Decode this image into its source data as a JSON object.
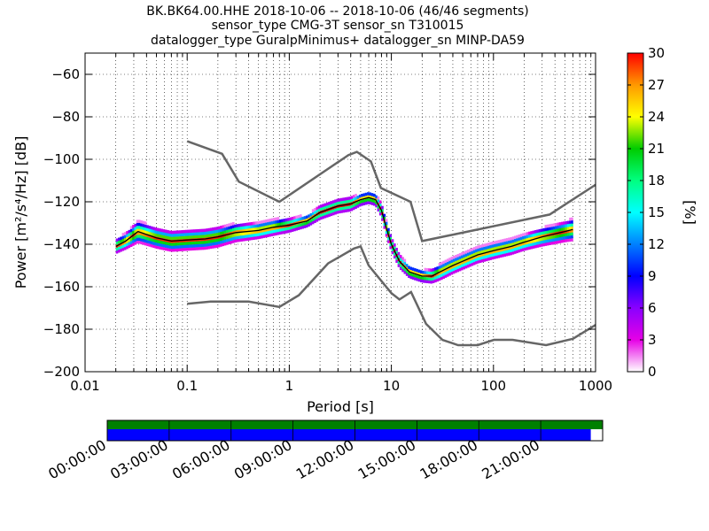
{
  "header": {
    "title_lines": [
      "BK.BK64.00.HHE   2018-10-06 -- 2018-10-06  (46/46 segments)",
      "sensor_type CMG-3T sensor_sn T310015",
      "datalogger_type GuralpMinimus+ datalogger_sn MINP-DA59"
    ]
  },
  "chart_data": {
    "type": "heatmap",
    "xlabel": "Period [s]",
    "ylabel": "Power [m²/s⁴/Hz] [dB]",
    "x_scale": "log",
    "xlim": [
      0.01,
      1000
    ],
    "ylim": [
      -200,
      -50
    ],
    "x_ticks": [
      {
        "value": 0.01,
        "label": "0.01"
      },
      {
        "value": 0.1,
        "label": "0.1"
      },
      {
        "value": 1,
        "label": "1"
      },
      {
        "value": 10,
        "label": "10"
      },
      {
        "value": 100,
        "label": "100"
      },
      {
        "value": 1000,
        "label": "1000"
      }
    ],
    "y_ticks": [
      {
        "value": -60,
        "label": "−60"
      },
      {
        "value": -80,
        "label": "−80"
      },
      {
        "value": -100,
        "label": "−100"
      },
      {
        "value": -120,
        "label": "−120"
      },
      {
        "value": -140,
        "label": "−140"
      },
      {
        "value": -160,
        "label": "−160"
      },
      {
        "value": -180,
        "label": "−180"
      },
      {
        "value": -200,
        "label": "−200"
      }
    ],
    "grid": "dotted vertical",
    "colorbar": {
      "label": "[%]",
      "min": 0,
      "max": 30,
      "ticks": [
        {
          "value": 0,
          "label": "0"
        },
        {
          "value": 3,
          "label": "3"
        },
        {
          "value": 6,
          "label": "6"
        },
        {
          "value": 9,
          "label": "9"
        },
        {
          "value": 12,
          "label": "12"
        },
        {
          "value": 15,
          "label": "15"
        },
        {
          "value": 18,
          "label": "18"
        },
        {
          "value": 21,
          "label": "21"
        },
        {
          "value": 24,
          "label": "24"
        },
        {
          "value": 27,
          "label": "27"
        },
        {
          "value": 30,
          "label": "30"
        }
      ],
      "colors": [
        "#ffffff",
        "#e600e6",
        "#8a00ff",
        "#0000ff",
        "#0080ff",
        "#00ffff",
        "#00ff80",
        "#00cc00",
        "#ffff00",
        "#ff9900",
        "#ff0000"
      ]
    },
    "noise_models": [
      {
        "period": [
          0.1,
          0.17,
          0.4,
          0.8,
          1.24,
          2.4,
          4.3,
          5,
          6,
          10,
          12,
          15.6,
          21.9,
          31.6,
          45,
          70,
          101,
          154,
          328,
          600,
          1000
        ],
        "power": [
          -168,
          -167,
          -167,
          -169.5,
          -164,
          -149,
          -142,
          -141,
          -150,
          -163,
          -166,
          -162.5,
          -177.5,
          -185,
          -187.5,
          -187.5,
          -185,
          -185,
          -187.5,
          -184.5,
          -178
        ]
      },
      {
        "period": [
          0.1,
          0.22,
          0.32,
          0.8,
          3.8,
          4.6,
          6.3,
          7.9,
          15.4,
          20,
          354.8,
          1000
        ],
        "power": [
          -91.5,
          -97.4,
          -110.5,
          -120,
          -98,
          -96.5,
          -101,
          -113.5,
          -120,
          -138.5,
          -126,
          -112
        ]
      }
    ],
    "psd_band": {
      "period": [
        0.02,
        0.025,
        0.033,
        0.05,
        0.07,
        0.1,
        0.15,
        0.2,
        0.3,
        0.5,
        0.7,
        1,
        1.5,
        2,
        3,
        4,
        5,
        6,
        7,
        8,
        9,
        10,
        12,
        15,
        20,
        25,
        30,
        40,
        50,
        70,
        100,
        150,
        200,
        300,
        500,
        600
      ],
      "median_power": [
        -141,
        -138.5,
        -134,
        -137,
        -138.5,
        -138,
        -137.5,
        -136.5,
        -134.5,
        -133.5,
        -132,
        -131,
        -129,
        -125,
        -122,
        -121,
        -119,
        -118,
        -119,
        -124,
        -133,
        -140,
        -148,
        -153,
        -155,
        -155,
        -153,
        -150,
        -148,
        -145,
        -143,
        -141,
        -139,
        -136.5,
        -134,
        -133
      ],
      "spread_db": [
        2.5,
        3,
        4.5,
        4,
        4,
        4,
        4,
        4,
        3.5,
        3,
        3,
        2.5,
        2,
        2.5,
        2.5,
        2.5,
        2,
        2,
        2,
        2.5,
        3,
        2.5,
        2.5,
        2,
        2,
        2.5,
        3,
        3,
        3,
        3,
        3,
        3,
        3,
        3.5,
        4,
        4.5
      ]
    },
    "coverage": {
      "time_labels": [
        "00:00:00",
        "03:00:00",
        "06:00:00",
        "09:00:00",
        "12:00:00",
        "15:00:00",
        "18:00:00",
        "21:00:00"
      ],
      "data_until_fraction": 0.976,
      "data_bar_color": "#008000",
      "used_bar_color": "#0000ff"
    }
  }
}
